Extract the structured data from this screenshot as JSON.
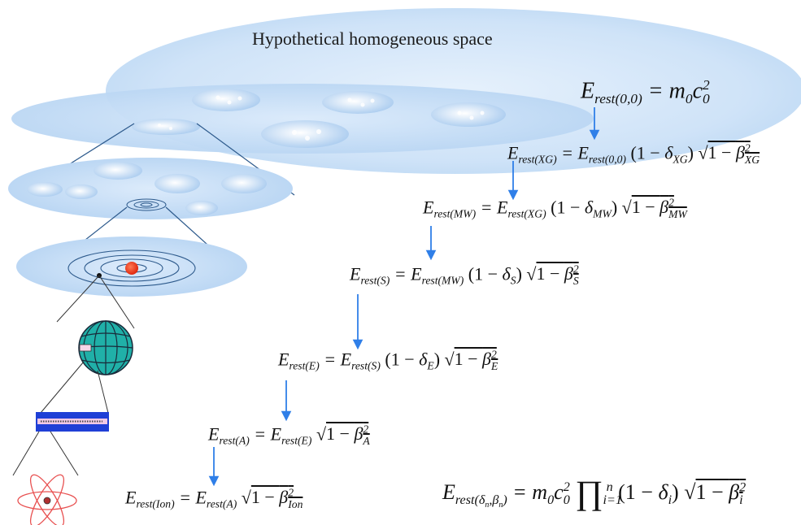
{
  "title": "Hypothetical homogeneous space",
  "equations": [
    {
      "id": "e00",
      "lhs": "E_rest(0,0)",
      "rhs": "= m₀c₀²"
    },
    {
      "id": "xg",
      "lhs": "E_rest(XG)",
      "rhs": "= E_rest(0,0) (1 − δ_XG) √(1 − β²_XG)"
    },
    {
      "id": "mw",
      "lhs": "E_rest(MW)",
      "rhs": "= E_rest(XG) (1 − δ_MW) √(1 − β²_MW)"
    },
    {
      "id": "s",
      "lhs": "E_rest(S)",
      "rhs": "= E_rest(MW) (1 − δ_S) √(1 − β²_S)"
    },
    {
      "id": "e",
      "lhs": "E_rest(E)",
      "rhs": "= E_rest(S) (1 − δ_E) √(1 − β²_E)"
    },
    {
      "id": "a",
      "lhs": "E_rest(A)",
      "rhs": "= E_rest(E) √(1 − β²_A)"
    },
    {
      "id": "ion",
      "lhs": "E_rest(Ion)",
      "rhs": "= E_rest(A) √(1 − β²_Ion)"
    },
    {
      "id": "general",
      "lhs": "E_rest(δn,βn)",
      "rhs": "= m₀c₀² ∏ᵢ₌₁ⁿ (1 − δᵢ) √(1 − βᵢ²)"
    }
  ],
  "colors": {
    "space": "#cfe3f8",
    "disk": "#bcd8f4",
    "arrow": "#2f7fe8",
    "line": "#2d5a8c",
    "sun": "#f03a1a",
    "earth": "#20b0a8",
    "atom": "#e85050"
  }
}
